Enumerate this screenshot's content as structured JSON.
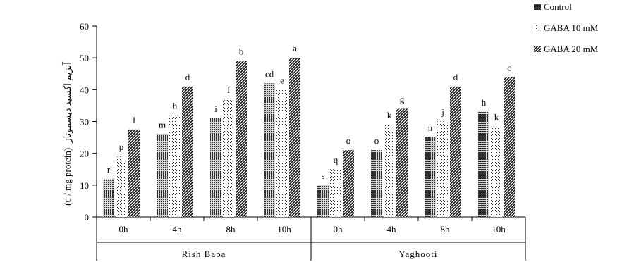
{
  "chart_data": {
    "type": "bar",
    "ylabel_latin": "(u / mg protein)",
    "ylabel_arabic": "آنزیم اکسید دیسموتاز",
    "ylim": [
      0,
      60
    ],
    "yticks": [
      0,
      10,
      20,
      30,
      40,
      50,
      60
    ],
    "groups": [
      "Rish Baba",
      "Yaghooti"
    ],
    "categories": [
      "0h",
      "4h",
      "8h",
      "10h",
      "0h",
      "4h",
      "8h",
      "10h"
    ],
    "series": [
      {
        "name": "Control",
        "pattern": "control",
        "values": [
          12,
          26,
          31,
          42,
          10,
          21,
          25,
          33
        ],
        "labels": [
          "r",
          "m",
          "i",
          "cd",
          "s",
          "o",
          "n",
          "h"
        ]
      },
      {
        "name": "GABA 10 mM",
        "pattern": "gaba10",
        "values": [
          19,
          32,
          37,
          40,
          15,
          29,
          30,
          28.5
        ],
        "labels": [
          "p",
          "h",
          "f",
          "e",
          "q",
          "k",
          "j",
          "k"
        ]
      },
      {
        "name": "GABA 20 mM",
        "pattern": "gaba20",
        "values": [
          27.5,
          41,
          49,
          50,
          21,
          34,
          41,
          44
        ],
        "labels": [
          "l",
          "d",
          "b",
          "a",
          "o",
          "g",
          "d",
          "c"
        ]
      }
    ],
    "legend_position": "top-right",
    "grid": false
  }
}
